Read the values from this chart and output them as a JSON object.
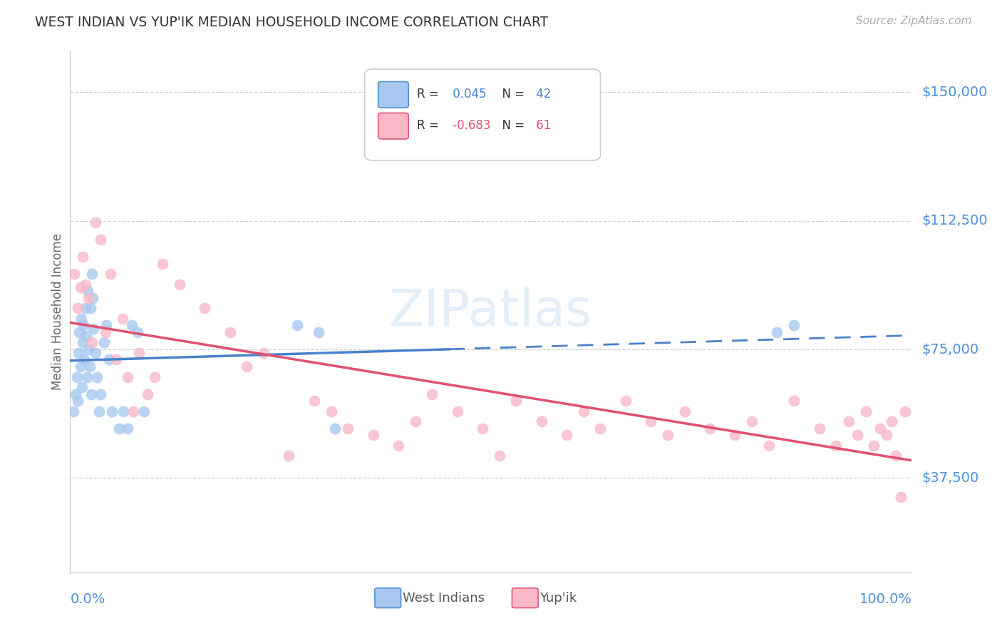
{
  "title": "WEST INDIAN VS YUP'IK MEDIAN HOUSEHOLD INCOME CORRELATION CHART",
  "source": "Source: ZipAtlas.com",
  "ylabel": "Median Household Income",
  "y_tick_labels": [
    "$37,500",
    "$75,000",
    "$112,500",
    "$150,000"
  ],
  "y_tick_values": [
    37500,
    75000,
    112500,
    150000
  ],
  "y_min": 10000,
  "y_max": 162000,
  "x_min": 0.0,
  "x_max": 1.0,
  "legend_blue_r": "0.045",
  "legend_blue_n": "42",
  "legend_pink_r": "-0.683",
  "legend_pink_n": "61",
  "color_blue_fill": "#a8c8f0",
  "color_blue_edge": "#5090d0",
  "color_pink_fill": "#f8b8c8",
  "color_pink_edge": "#e05878",
  "color_blue_line": "#4a82cc",
  "color_pink_line": "#e05070",
  "color_title": "#333333",
  "color_axis_val": "#4a90d9",
  "color_source": "#aaaaaa",
  "legend_label_blue": "West Indians",
  "legend_label_pink": "Yup'ik",
  "west_indian_x": [
    0.004,
    0.006,
    0.008,
    0.009,
    0.01,
    0.011,
    0.012,
    0.013,
    0.014,
    0.015,
    0.016,
    0.017,
    0.018,
    0.019,
    0.02,
    0.021,
    0.022,
    0.023,
    0.024,
    0.025,
    0.026,
    0.027,
    0.028,
    0.03,
    0.032,
    0.034,
    0.036,
    0.04,
    0.043,
    0.046,
    0.05,
    0.058,
    0.063,
    0.068,
    0.073,
    0.08,
    0.088,
    0.27,
    0.295,
    0.315,
    0.84,
    0.86
  ],
  "west_indian_y": [
    57000,
    62000,
    67000,
    60000,
    74000,
    80000,
    70000,
    84000,
    64000,
    77000,
    82000,
    72000,
    87000,
    79000,
    67000,
    92000,
    75000,
    70000,
    87000,
    62000,
    97000,
    90000,
    81000,
    74000,
    67000,
    57000,
    62000,
    77000,
    82000,
    72000,
    57000,
    52000,
    57000,
    52000,
    82000,
    80000,
    57000,
    82000,
    80000,
    52000,
    80000,
    82000
  ],
  "yupik_x": [
    0.005,
    0.009,
    0.012,
    0.015,
    0.018,
    0.022,
    0.026,
    0.03,
    0.036,
    0.042,
    0.048,
    0.055,
    0.062,
    0.068,
    0.075,
    0.082,
    0.092,
    0.1,
    0.11,
    0.13,
    0.16,
    0.19,
    0.21,
    0.23,
    0.26,
    0.29,
    0.31,
    0.33,
    0.36,
    0.39,
    0.41,
    0.43,
    0.46,
    0.49,
    0.51,
    0.53,
    0.56,
    0.59,
    0.61,
    0.63,
    0.66,
    0.69,
    0.71,
    0.73,
    0.76,
    0.79,
    0.81,
    0.83,
    0.86,
    0.89,
    0.91,
    0.925,
    0.935,
    0.945,
    0.955,
    0.962,
    0.97,
    0.976,
    0.981,
    0.987,
    0.992
  ],
  "yupik_y": [
    97000,
    87000,
    93000,
    102000,
    94000,
    90000,
    77000,
    112000,
    107000,
    80000,
    97000,
    72000,
    84000,
    67000,
    57000,
    74000,
    62000,
    67000,
    100000,
    94000,
    87000,
    80000,
    70000,
    74000,
    44000,
    60000,
    57000,
    52000,
    50000,
    47000,
    54000,
    62000,
    57000,
    52000,
    44000,
    60000,
    54000,
    50000,
    57000,
    52000,
    60000,
    54000,
    50000,
    57000,
    52000,
    50000,
    54000,
    47000,
    60000,
    52000,
    47000,
    54000,
    50000,
    57000,
    47000,
    52000,
    50000,
    54000,
    44000,
    32000,
    57000
  ]
}
